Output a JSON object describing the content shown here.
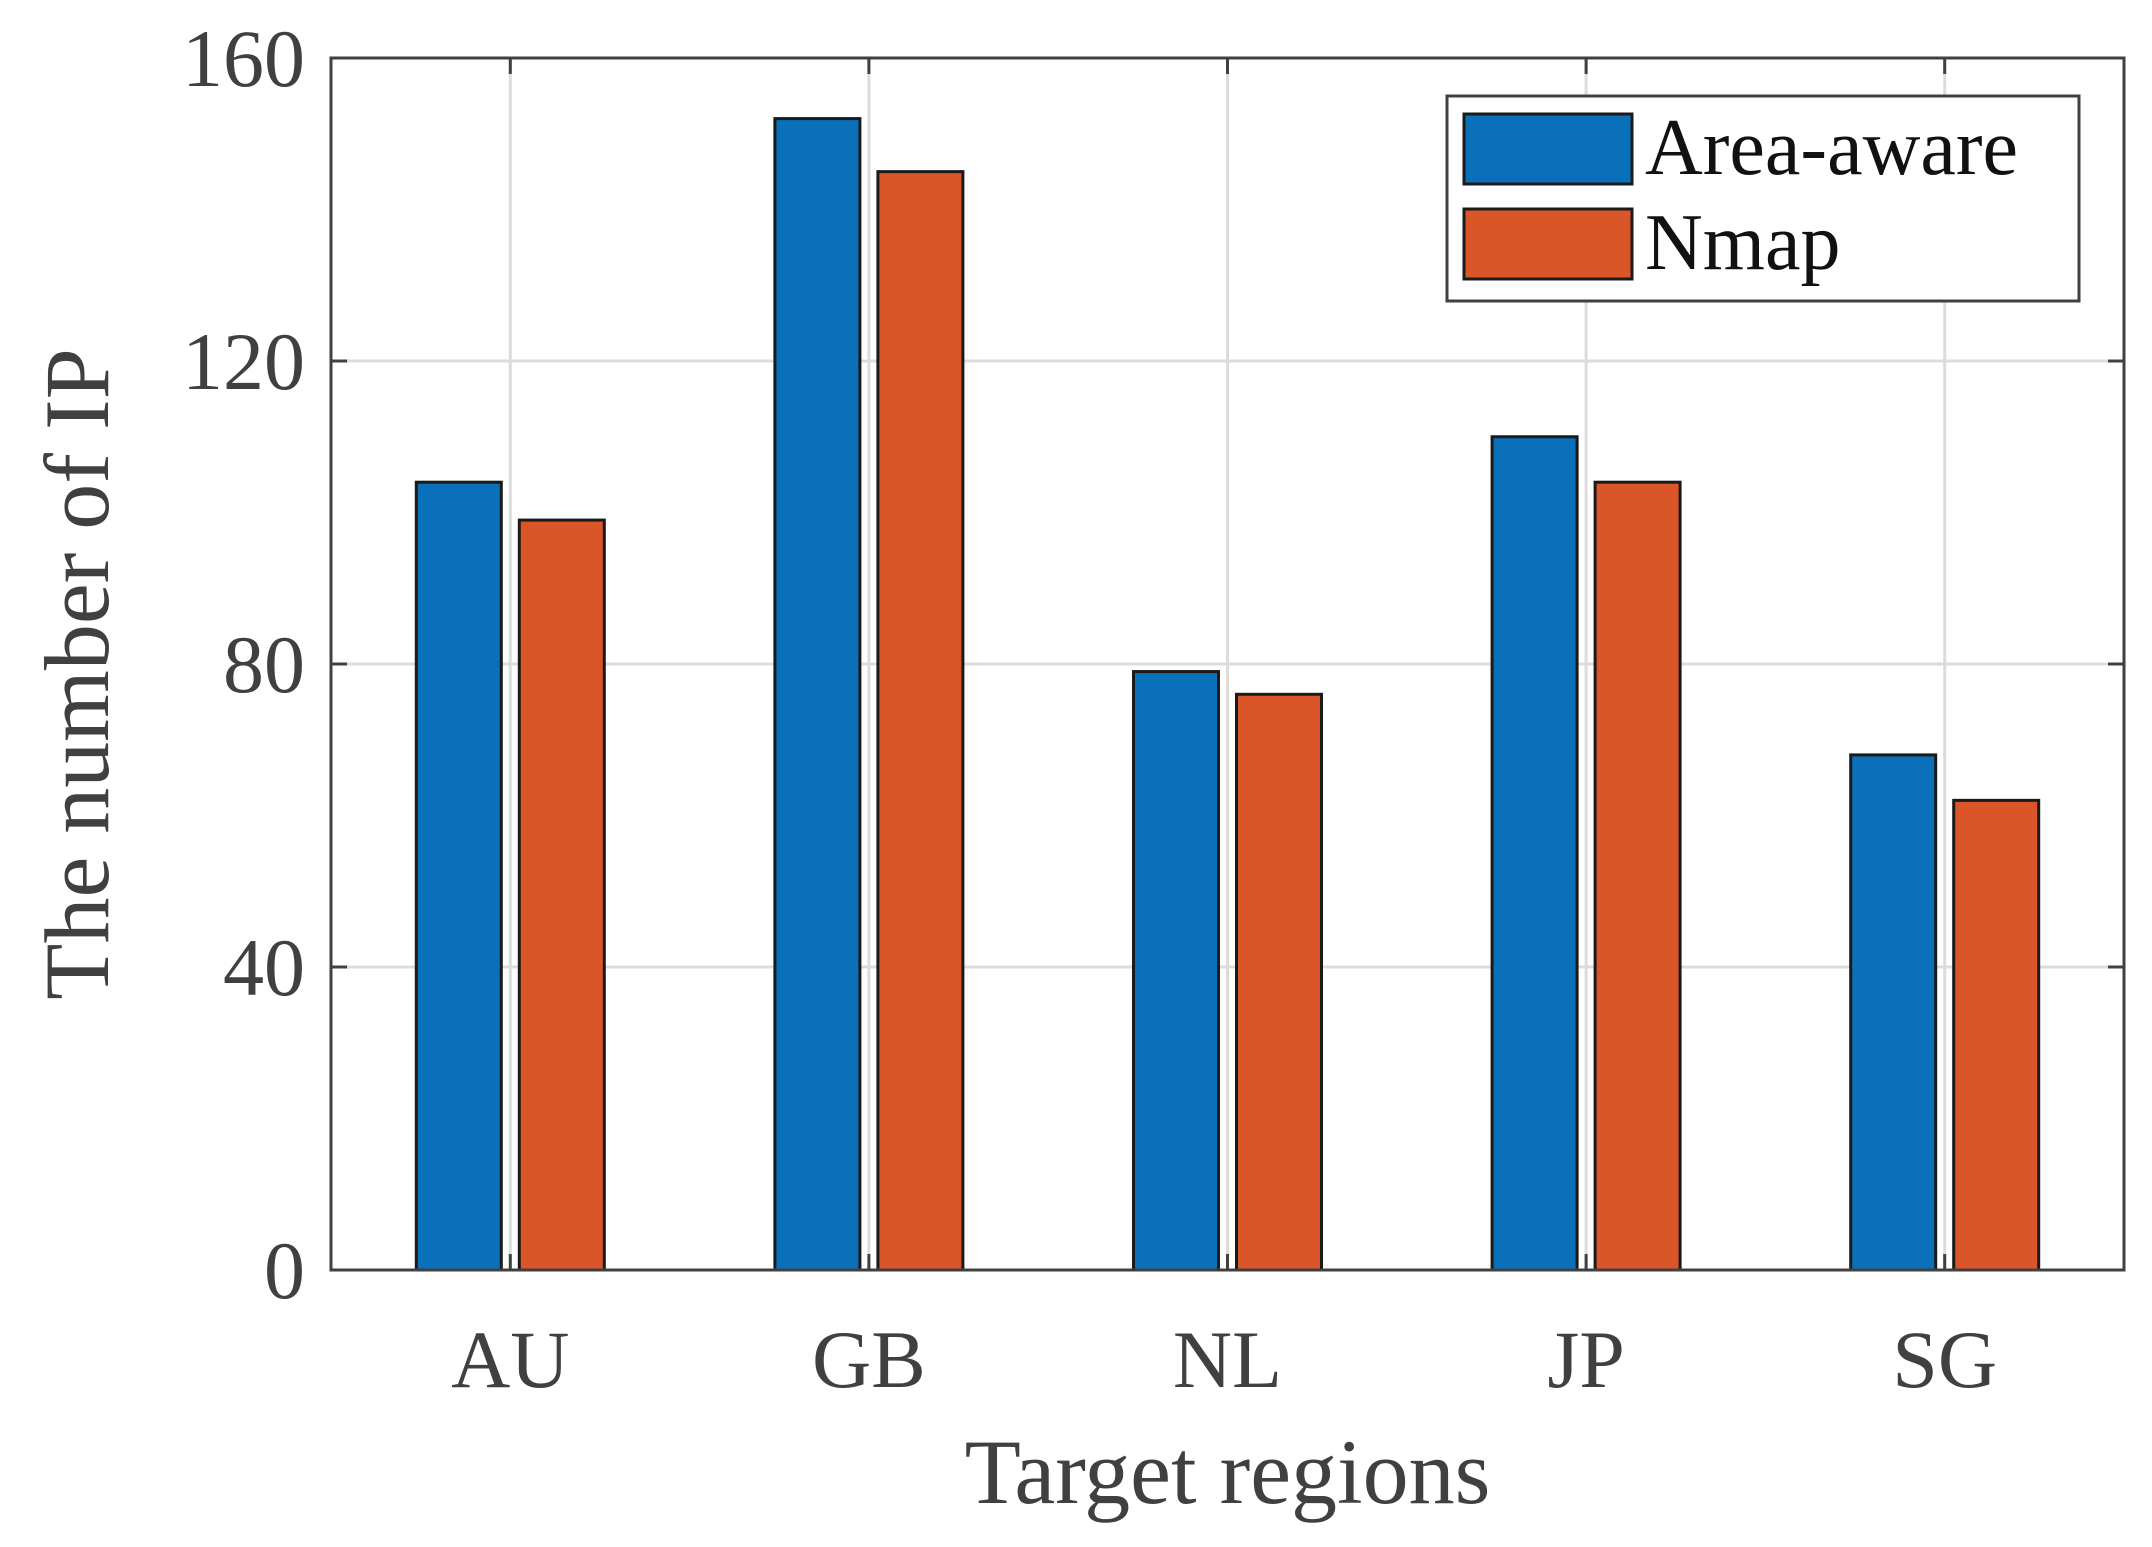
{
  "chart_data": {
    "type": "bar",
    "title": "",
    "xlabel": "Target regions",
    "ylabel": "The number of IP",
    "categories": [
      "AU",
      "GB",
      "NL",
      "JP",
      "SG"
    ],
    "series": [
      {
        "name": "Area-aware",
        "color": "#0B70BA",
        "values": [
          104,
          152,
          79,
          110,
          68
        ]
      },
      {
        "name": "Nmap",
        "color": "#DA5527",
        "values": [
          99,
          145,
          76,
          104,
          62
        ]
      }
    ],
    "ylim": [
      0,
      160
    ],
    "yticks": [
      "0",
      "40",
      "80",
      "120",
      "160"
    ],
    "grid": true,
    "legend_position": "top-right"
  }
}
